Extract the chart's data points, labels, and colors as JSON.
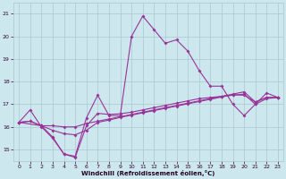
{
  "xlabel": "Windchill (Refroidissement éolien,°C)",
  "bg_color": "#cce8ee",
  "grid_color": "#aac8cc",
  "line_color": "#993399",
  "xlim": [
    -0.5,
    23.5
  ],
  "ylim": [
    14.5,
    21.5
  ],
  "yticks": [
    15,
    16,
    17,
    18,
    19,
    20,
    21
  ],
  "xticks": [
    0,
    1,
    2,
    3,
    4,
    5,
    6,
    7,
    8,
    9,
    10,
    11,
    12,
    13,
    14,
    15,
    16,
    17,
    18,
    19,
    20,
    21,
    22,
    23
  ],
  "line1_x": [
    0,
    1,
    2,
    3,
    4,
    5,
    6,
    7,
    8,
    9,
    10,
    11,
    12,
    13,
    14,
    15,
    16,
    17,
    18,
    19,
    20,
    21,
    22,
    23
  ],
  "line1_y": [
    16.2,
    16.75,
    16.0,
    15.5,
    14.8,
    14.7,
    16.4,
    17.4,
    16.5,
    16.5,
    20.0,
    20.9,
    20.3,
    19.7,
    19.85,
    19.35,
    18.5,
    17.8,
    17.8,
    17.0,
    16.5,
    17.0,
    17.5,
    17.3
  ],
  "line2_x": [
    0,
    1,
    2,
    3,
    4,
    5,
    6,
    7,
    8,
    9,
    10,
    11,
    12,
    13,
    14,
    15,
    16,
    17,
    18,
    19,
    20,
    21,
    22,
    23
  ],
  "line2_y": [
    16.2,
    16.25,
    16.05,
    16.05,
    16.0,
    16.0,
    16.15,
    16.25,
    16.35,
    16.45,
    16.55,
    16.65,
    16.75,
    16.85,
    16.95,
    17.05,
    17.15,
    17.25,
    17.35,
    17.45,
    17.55,
    17.1,
    17.3,
    17.3
  ],
  "line3_x": [
    0,
    1,
    2,
    3,
    4,
    5,
    6,
    7,
    8,
    9,
    10,
    11,
    12,
    13,
    14,
    15,
    16,
    17,
    18,
    19,
    20,
    21,
    22,
    23
  ],
  "line3_y": [
    16.2,
    16.25,
    16.05,
    15.85,
    15.7,
    15.65,
    15.85,
    16.2,
    16.3,
    16.42,
    16.52,
    16.62,
    16.72,
    16.82,
    16.92,
    17.02,
    17.12,
    17.22,
    17.32,
    17.42,
    17.4,
    17.1,
    17.3,
    17.3
  ],
  "line4_x": [
    0,
    2,
    3,
    4,
    5,
    6,
    7,
    8,
    9,
    10,
    11,
    12,
    13,
    14,
    15,
    16,
    17,
    18,
    19,
    20,
    21,
    22,
    23
  ],
  "line4_y": [
    16.2,
    16.05,
    15.55,
    14.8,
    14.65,
    16.05,
    16.6,
    16.55,
    16.58,
    16.65,
    16.75,
    16.85,
    16.95,
    17.05,
    17.15,
    17.25,
    17.3,
    17.35,
    17.4,
    17.45,
    17.0,
    17.25,
    17.3
  ]
}
